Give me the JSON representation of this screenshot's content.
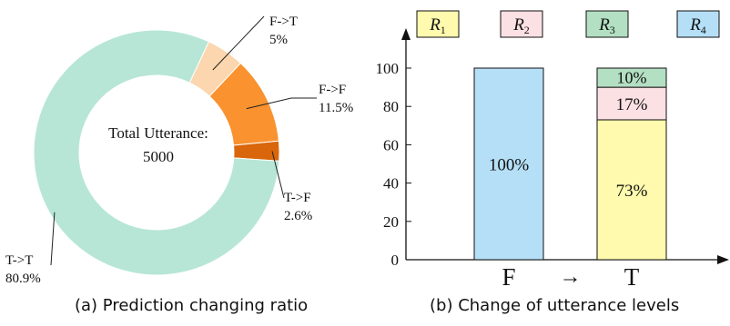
{
  "chart_data": [
    {
      "type": "pie",
      "variant": "donut",
      "caption": "(a) Prediction changing ratio",
      "center_label": "Total Utterance:",
      "center_value": "5000",
      "slices": [
        {
          "name": "F->T",
          "value": 5,
          "label": "5%",
          "color": "#fbd6ae"
        },
        {
          "name": "F->F",
          "value": 11.5,
          "label": "11.5%",
          "color": "#f9922f"
        },
        {
          "name": "T->F",
          "value": 2.6,
          "label": "2.6%",
          "color": "#d9660b"
        },
        {
          "name": "T->T",
          "value": 80.9,
          "label": "80.9%",
          "color": "#b7e6d6"
        }
      ]
    },
    {
      "type": "bar",
      "stacked": true,
      "caption": "(b) Change of utterance levels",
      "categories": [
        "F",
        "T"
      ],
      "arrow": "→",
      "ylim": [
        0,
        100
      ],
      "yticks": [
        0,
        20,
        40,
        60,
        80,
        100
      ],
      "legend_position": "top",
      "series": [
        {
          "name": "R1",
          "base": "R",
          "sub": "1",
          "color": "#fffaad",
          "values": [
            0,
            73
          ],
          "labels": [
            "",
            "73%"
          ]
        },
        {
          "name": "R2",
          "base": "R",
          "sub": "2",
          "color": "#fbe0e4",
          "values": [
            0,
            17
          ],
          "labels": [
            "",
            "17%"
          ]
        },
        {
          "name": "R3",
          "base": "R",
          "sub": "3",
          "color": "#b3dfc2",
          "values": [
            0,
            10
          ],
          "labels": [
            "",
            "10%"
          ]
        },
        {
          "name": "R4",
          "base": "R",
          "sub": "4",
          "color": "#b5dff6",
          "values": [
            100,
            0
          ],
          "labels": [
            "100%",
            ""
          ]
        }
      ]
    }
  ]
}
